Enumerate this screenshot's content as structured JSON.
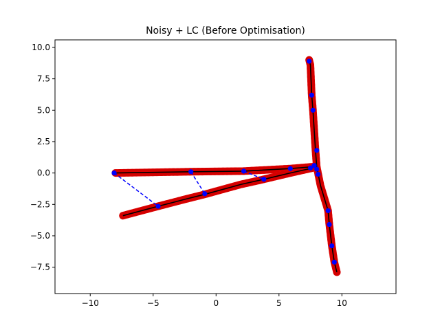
{
  "chart_data": {
    "type": "line",
    "title": "Noisy + LC (Before Optimisation)",
    "xlabel": "",
    "ylabel": "",
    "xlim": [
      -12.8,
      14.3
    ],
    "ylim": [
      -9.6,
      10.6
    ],
    "xticks": [
      -10,
      -5,
      0,
      5,
      10
    ],
    "yticks": [
      -7.5,
      -5.0,
      -2.5,
      0.0,
      2.5,
      5.0,
      7.5,
      10.0
    ],
    "ytick_labels": [
      "−7.5",
      "−5.0",
      "−2.5",
      "0.0",
      "2.5",
      "5.0",
      "7.5",
      "10.0"
    ],
    "xtick_labels": [
      "−10",
      "−5",
      "0",
      "5",
      "10"
    ],
    "grid": false,
    "series": [
      {
        "role": "noisy_trajectory",
        "color": "#ff0000",
        "style": "thick-marker-band",
        "points": [
          [
            7.4,
            9.0
          ],
          [
            7.5,
            8.6
          ],
          [
            7.6,
            6.2
          ],
          [
            7.7,
            5.0
          ],
          [
            7.9,
            1.8
          ],
          [
            8.0,
            0.5
          ],
          [
            8.1,
            0.0
          ],
          [
            8.3,
            -1.0
          ],
          [
            8.9,
            -3.0
          ],
          [
            9.0,
            -4.1
          ],
          [
            9.2,
            -5.8
          ],
          [
            9.4,
            -7.1
          ],
          [
            9.6,
            -7.9
          ]
        ]
      },
      {
        "role": "noisy_trajectory",
        "color": "#ff0000",
        "style": "thick-marker-band",
        "points": [
          [
            -8.0,
            0.0
          ],
          [
            -2.0,
            0.1
          ],
          [
            2.2,
            0.15
          ],
          [
            5.9,
            0.35
          ],
          [
            7.7,
            0.5
          ]
        ]
      },
      {
        "role": "noisy_trajectory",
        "color": "#ff0000",
        "style": "thick-marker-band",
        "points": [
          [
            -7.4,
            -3.4
          ],
          [
            -4.6,
            -2.65
          ],
          [
            -2.5,
            -2.1
          ],
          [
            -0.9,
            -1.7
          ],
          [
            2.0,
            -0.9
          ],
          [
            3.8,
            -0.5
          ],
          [
            5.9,
            0.0
          ],
          [
            7.7,
            0.4
          ]
        ]
      },
      {
        "role": "pose_graph",
        "color": "#000000",
        "style": "solid",
        "points": [
          [
            7.4,
            9.0
          ],
          [
            7.5,
            8.6
          ],
          [
            7.6,
            6.2
          ],
          [
            7.7,
            5.0
          ],
          [
            7.9,
            1.8
          ],
          [
            8.0,
            0.5
          ],
          [
            8.1,
            0.0
          ],
          [
            8.3,
            -1.0
          ],
          [
            8.9,
            -3.0
          ],
          [
            9.0,
            -4.1
          ],
          [
            9.2,
            -5.8
          ],
          [
            9.4,
            -7.1
          ],
          [
            9.6,
            -7.9
          ]
        ]
      },
      {
        "role": "pose_graph",
        "color": "#000000",
        "style": "solid",
        "points": [
          [
            -8.0,
            0.0
          ],
          [
            -2.0,
            0.1
          ],
          [
            2.2,
            0.15
          ],
          [
            5.9,
            0.35
          ],
          [
            7.7,
            0.5
          ]
        ]
      },
      {
        "role": "pose_graph",
        "color": "#000000",
        "style": "solid",
        "points": [
          [
            -7.4,
            -3.4
          ],
          [
            -4.6,
            -2.65
          ],
          [
            -2.5,
            -2.1
          ],
          [
            -0.9,
            -1.7
          ],
          [
            2.0,
            -0.9
          ],
          [
            3.8,
            -0.5
          ],
          [
            5.9,
            0.0
          ],
          [
            7.7,
            0.4
          ]
        ]
      }
    ],
    "keyframes": {
      "color": "#0000ff",
      "points": [
        [
          7.4,
          8.9
        ],
        [
          7.6,
          6.2
        ],
        [
          7.7,
          5.0
        ],
        [
          8.0,
          1.8
        ],
        [
          7.8,
          0.6
        ],
        [
          8.0,
          0.3
        ],
        [
          8.1,
          -0.1
        ],
        [
          8.9,
          -3.0
        ],
        [
          9.0,
          -4.1
        ],
        [
          9.2,
          -5.8
        ],
        [
          9.4,
          -7.1
        ],
        [
          -8.1,
          0.0
        ],
        [
          -2.0,
          0.1
        ],
        [
          2.2,
          0.15
        ],
        [
          5.9,
          0.35
        ],
        [
          7.5,
          0.4
        ],
        [
          -4.6,
          -2.65
        ],
        [
          -0.9,
          -1.65
        ],
        [
          3.8,
          -0.5
        ]
      ]
    },
    "loop_closures": {
      "color": "#0000ff",
      "style": "dashed",
      "edges": [
        [
          [
            -8.1,
            0.0
          ],
          [
            -4.6,
            -2.65
          ]
        ],
        [
          [
            -2.0,
            0.1
          ],
          [
            -0.9,
            -1.65
          ]
        ],
        [
          [
            2.2,
            0.15
          ],
          [
            3.8,
            -0.5
          ]
        ]
      ]
    }
  }
}
